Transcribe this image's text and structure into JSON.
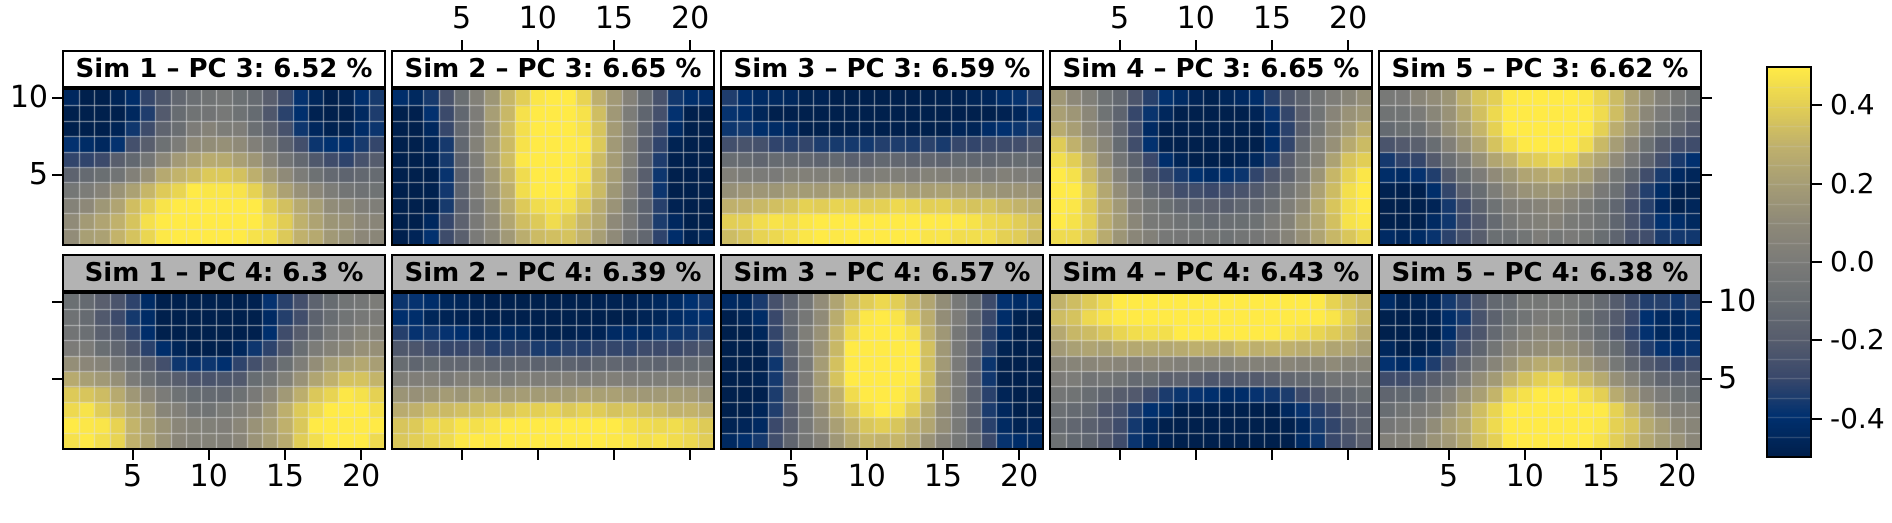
{
  "figure": {
    "background": "#ffffff",
    "text_color": "#000000"
  },
  "axes": {
    "x_tick_labels": [
      "5",
      "10",
      "15",
      "20"
    ],
    "x_tick_values": [
      5,
      10,
      15,
      20
    ],
    "y_tick_labels": [
      "10",
      "5"
    ],
    "y_tick_values": [
      10,
      5
    ],
    "x_domain": [
      1,
      21
    ],
    "y_domain": [
      1,
      10
    ],
    "top_labeled_columns": [
      1,
      3
    ],
    "bottom_labeled_columns": [
      0,
      2,
      4
    ]
  },
  "strips": {
    "row1_bg": "#ffffff",
    "row2_bg": "#b3b3b3",
    "border_color": "#000000"
  },
  "colorbar": {
    "min": -0.5,
    "max": 0.5,
    "tick_values": [
      0.4,
      0.2,
      0.0,
      -0.2,
      -0.4
    ],
    "tick_labels": [
      "0.4",
      "0.2",
      "0.0",
      "-0.2",
      "-0.4"
    ],
    "colormap": [
      [
        0.0,
        "#00204D"
      ],
      [
        0.1,
        "#00306F"
      ],
      [
        0.2,
        "#39486B"
      ],
      [
        0.3,
        "#575D6D"
      ],
      [
        0.4,
        "#696E72"
      ],
      [
        0.5,
        "#7B7B78"
      ],
      [
        0.6,
        "#8E8978"
      ],
      [
        0.7,
        "#A69D75"
      ],
      [
        0.8,
        "#C0B16C"
      ],
      [
        0.9,
        "#E2CE55"
      ],
      [
        1.0,
        "#FFEA46"
      ]
    ]
  },
  "chart_data": {
    "type": "heatmap",
    "layout": "2 rows x 5 columns of panels",
    "grid": {
      "ncols": 21,
      "nrows": 10
    },
    "value_range": [
      -0.5,
      0.5
    ],
    "panels": [
      {
        "title": "Sim 1 – PC 3: 6.52 %",
        "sim": 1,
        "pc": 3,
        "variance_pct": 6.52,
        "row": 0,
        "col": 0,
        "pattern": "bright blob bottom-center, dark blobs top-left and top-right",
        "bumps": [
          {
            "u": 0.45,
            "v": 0.18,
            "su": 0.27,
            "sv": 0.32,
            "a": 0.62
          },
          {
            "u": 0.1,
            "v": 0.8,
            "su": 0.17,
            "sv": 0.3,
            "a": -0.6
          },
          {
            "u": 0.84,
            "v": 0.8,
            "su": 0.16,
            "sv": 0.3,
            "a": -0.56
          }
        ]
      },
      {
        "title": "Sim 2 – PC 3: 6.65 %",
        "sim": 2,
        "pc": 3,
        "variance_pct": 6.65,
        "row": 0,
        "col": 1,
        "pattern": "bright vertical band center, dark vertical bands left and right",
        "bumps": [
          {
            "u": 0.5,
            "v": 0.62,
            "su": 0.15,
            "sv": 0.55,
            "a": 0.62
          },
          {
            "u": 0.05,
            "v": 0.45,
            "su": 0.13,
            "sv": 0.6,
            "a": -0.62
          },
          {
            "u": 0.95,
            "v": 0.45,
            "su": 0.13,
            "sv": 0.6,
            "a": -0.62
          }
        ]
      },
      {
        "title": "Sim 3 – PC 3: 6.59 %",
        "sim": 3,
        "pc": 3,
        "variance_pct": 6.59,
        "row": 0,
        "col": 2,
        "pattern": "dark horizontal band top, bright horizontal band bottom",
        "bumps": [
          {
            "u": 0.5,
            "v": 0.85,
            "su": 0.55,
            "sv": 0.2,
            "a": -0.6
          },
          {
            "u": 0.5,
            "v": 0.12,
            "su": 0.55,
            "sv": 0.18,
            "a": 0.56
          }
        ]
      },
      {
        "title": "Sim 4 – PC 3: 6.65 %",
        "sim": 4,
        "pc": 3,
        "variance_pct": 6.65,
        "row": 0,
        "col": 3,
        "pattern": "dark blob top-center, bright bands on left and right edges",
        "bumps": [
          {
            "u": 0.5,
            "v": 0.72,
            "su": 0.24,
            "sv": 0.3,
            "a": -0.65
          },
          {
            "u": 0.02,
            "v": 0.35,
            "su": 0.15,
            "sv": 0.42,
            "a": 0.6
          },
          {
            "u": 0.98,
            "v": 0.35,
            "su": 0.14,
            "sv": 0.42,
            "a": 0.56
          }
        ]
      },
      {
        "title": "Sim 5 – PC 3: 6.62 %",
        "sim": 5,
        "pc": 3,
        "variance_pct": 6.62,
        "row": 0,
        "col": 4,
        "pattern": "bright blob top-center, dark regions bottom-left and right",
        "bumps": [
          {
            "u": 0.53,
            "v": 0.8,
            "su": 0.25,
            "sv": 0.3,
            "a": 0.65
          },
          {
            "u": 0.08,
            "v": 0.28,
            "su": 0.18,
            "sv": 0.36,
            "a": -0.56
          },
          {
            "u": 0.94,
            "v": 0.38,
            "su": 0.16,
            "sv": 0.4,
            "a": -0.54
          }
        ]
      },
      {
        "title": "Sim 1 – PC 4: 6.3 %",
        "sim": 1,
        "pc": 4,
        "variance_pct": 6.3,
        "row": 1,
        "col": 0,
        "pattern": "dark blob top-center, bright blobs bottom-left and bottom-right",
        "bumps": [
          {
            "u": 0.45,
            "v": 0.82,
            "su": 0.23,
            "sv": 0.3,
            "a": -0.65
          },
          {
            "u": 0.06,
            "v": 0.14,
            "su": 0.17,
            "sv": 0.3,
            "a": 0.52
          },
          {
            "u": 0.88,
            "v": 0.18,
            "su": 0.18,
            "sv": 0.32,
            "a": 0.58
          }
        ]
      },
      {
        "title": "Sim 2 – PC 4: 6.39 %",
        "sim": 2,
        "pc": 4,
        "variance_pct": 6.39,
        "row": 1,
        "col": 1,
        "pattern": "dark horizontal band top, bright horizontal band bottom",
        "bumps": [
          {
            "u": 0.5,
            "v": 0.88,
            "su": 0.6,
            "sv": 0.24,
            "a": -0.55
          },
          {
            "u": 0.5,
            "v": 0.1,
            "su": 0.6,
            "sv": 0.2,
            "a": 0.55
          }
        ]
      },
      {
        "title": "Sim 3 – PC 4: 6.57 %",
        "sim": 3,
        "pc": 4,
        "variance_pct": 6.57,
        "row": 1,
        "col": 2,
        "pattern": "bright vertical band center, dark vertical bands left and right",
        "bumps": [
          {
            "u": 0.5,
            "v": 0.55,
            "su": 0.14,
            "sv": 0.42,
            "a": 0.66
          },
          {
            "u": 0.05,
            "v": 0.5,
            "su": 0.13,
            "sv": 0.58,
            "a": -0.6
          },
          {
            "u": 0.95,
            "v": 0.5,
            "su": 0.13,
            "sv": 0.58,
            "a": -0.6
          }
        ]
      },
      {
        "title": "Sim 4 – PC 4: 6.43 %",
        "sim": 4,
        "pc": 4,
        "variance_pct": 6.43,
        "row": 1,
        "col": 3,
        "pattern": "bright band along top, dark blob bottom-center",
        "bumps": [
          {
            "u": 0.32,
            "v": 0.88,
            "su": 0.3,
            "sv": 0.22,
            "a": 0.52
          },
          {
            "u": 0.78,
            "v": 0.85,
            "su": 0.24,
            "sv": 0.22,
            "a": 0.42
          },
          {
            "u": 0.55,
            "v": 0.12,
            "su": 0.27,
            "sv": 0.28,
            "a": -0.66
          }
        ]
      },
      {
        "title": "Sim 5 – PC 4: 6.38 %",
        "sim": 5,
        "pc": 4,
        "variance_pct": 6.38,
        "row": 1,
        "col": 4,
        "pattern": "bright blob bottom-center, dark blobs top-left and top-right",
        "bumps": [
          {
            "u": 0.55,
            "v": 0.2,
            "su": 0.25,
            "sv": 0.3,
            "a": 0.65
          },
          {
            "u": 0.1,
            "v": 0.76,
            "su": 0.18,
            "sv": 0.32,
            "a": -0.58
          },
          {
            "u": 0.9,
            "v": 0.72,
            "su": 0.16,
            "sv": 0.3,
            "a": -0.5
          }
        ]
      }
    ]
  }
}
